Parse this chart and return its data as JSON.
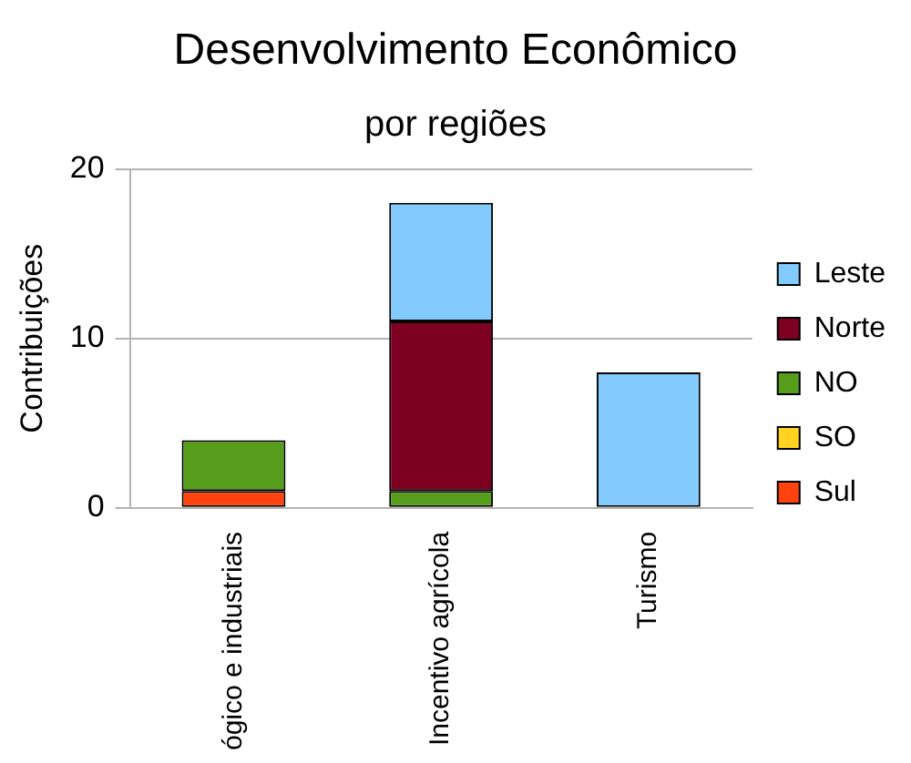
{
  "chart_data": {
    "type": "bar",
    "title": "Desenvolvimento Econômico",
    "subtitle": "por regiões",
    "ylabel": "Contribuições",
    "categories": [
      "ógico e industriais",
      "Incentivo agrícola",
      "Turismo"
    ],
    "stacked": true,
    "series": [
      {
        "name": "Sul",
        "color": "#ff420e",
        "values": [
          1,
          0,
          0
        ]
      },
      {
        "name": "SO",
        "color": "#ffd320",
        "values": [
          0,
          0,
          0
        ]
      },
      {
        "name": "NO",
        "color": "#579d1c",
        "values": [
          3,
          1,
          0
        ]
      },
      {
        "name": "Norte",
        "color": "#7e0021",
        "values": [
          0,
          10,
          0
        ]
      },
      {
        "name": "Leste",
        "color": "#83caff",
        "values": [
          0,
          7,
          8
        ]
      }
    ],
    "ylim": [
      0,
      20
    ],
    "yticks": [
      0,
      10,
      20
    ],
    "grid": "y",
    "legend": "right"
  }
}
